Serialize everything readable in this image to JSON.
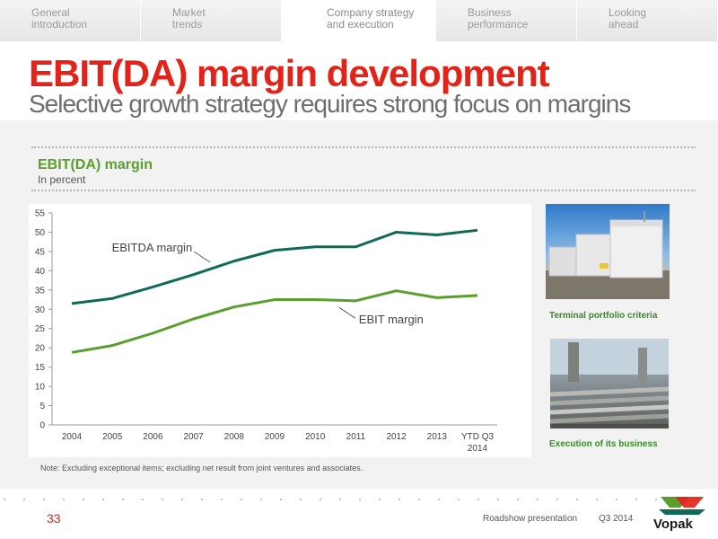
{
  "tabs": [
    {
      "label": "General\nintroduction"
    },
    {
      "label": "Market\ntrends"
    },
    {
      "label": "Company strategy\nand execution"
    },
    {
      "label": "Business\nperformance"
    },
    {
      "label": "Looking\nahead"
    }
  ],
  "active_tab": 2,
  "header": {
    "title": "EBIT(DA) margin development",
    "subtitle": "Selective growth strategy requires strong focus on margins"
  },
  "chart_header": {
    "title": "EBIT(DA) margin",
    "unit": "In percent"
  },
  "chart_data": {
    "type": "line",
    "title": "EBIT(DA) margin",
    "categories": [
      "2004",
      "2005",
      "2006",
      "2007",
      "2008",
      "2009",
      "2010",
      "2011",
      "2012",
      "2013",
      "YTD Q3 2014"
    ],
    "category_labels": [
      [
        "2004"
      ],
      [
        "2005"
      ],
      [
        "2006"
      ],
      [
        "2007"
      ],
      [
        "2008"
      ],
      [
        "2009"
      ],
      [
        "2010"
      ],
      [
        "2011"
      ],
      [
        "2012"
      ],
      [
        "2013"
      ],
      [
        "YTD Q3",
        "2014"
      ]
    ],
    "series": [
      {
        "name": "EBITDA margin",
        "color": "#0f6b56",
        "values": [
          31.5,
          32.8,
          35.8,
          39.0,
          42.5,
          45.3,
          46.2,
          46.2,
          50.0,
          49.3,
          50.5
        ]
      },
      {
        "name": "EBIT margin",
        "color": "#5a9e2c",
        "values": [
          18.8,
          20.6,
          23.8,
          27.5,
          30.6,
          32.5,
          32.5,
          32.2,
          34.8,
          33.0,
          33.6
        ]
      }
    ],
    "ylim": [
      0,
      55
    ],
    "yticks": [
      0,
      5,
      10,
      15,
      20,
      25,
      30,
      35,
      40,
      45,
      50,
      55
    ],
    "grid": false,
    "legend": "inline annotations"
  },
  "note": "Note: Excluding exceptional items; excluding net result from joint ventures and associates.",
  "sidebar": {
    "caption1": "Terminal portfolio criteria",
    "caption2": "Execution of its business"
  },
  "footer": {
    "page": "33",
    "text": "Roadshow presentation",
    "period": "Q3 2014",
    "logo_text": "Vopak"
  },
  "colors": {
    "accent_red": "#e2231a",
    "accent_green": "#5a9e2c",
    "dark_green": "#0f6b56"
  }
}
